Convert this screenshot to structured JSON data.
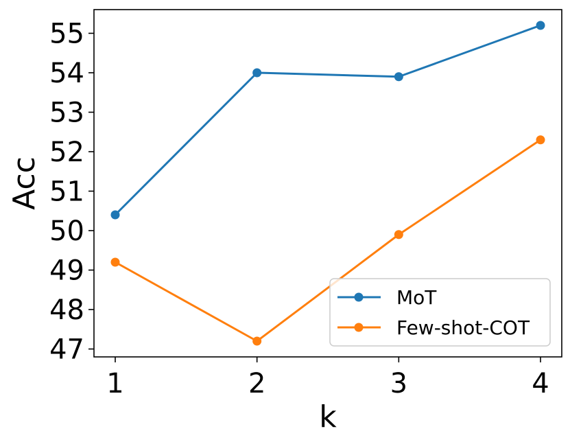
{
  "chart_data": {
    "type": "line",
    "xlabel": "k",
    "ylabel": "Acc",
    "x": [
      1,
      2,
      3,
      4
    ],
    "xticks": [
      "1",
      "2",
      "3",
      "4"
    ],
    "yticks": [
      "47",
      "48",
      "49",
      "50",
      "51",
      "52",
      "53",
      "54",
      "55"
    ],
    "xlim": [
      0.85,
      4.15
    ],
    "ylim": [
      46.8,
      55.6
    ],
    "grid": false,
    "legend_position": "lower-right",
    "markers": "circle",
    "series": [
      {
        "name": "MoT",
        "values": [
          50.4,
          54.0,
          53.9,
          55.2
        ],
        "color": "#1f77b4"
      },
      {
        "name": "Few-shot-COT",
        "values": [
          49.2,
          47.2,
          49.9,
          52.3
        ],
        "color": "#ff7f0e"
      }
    ]
  }
}
